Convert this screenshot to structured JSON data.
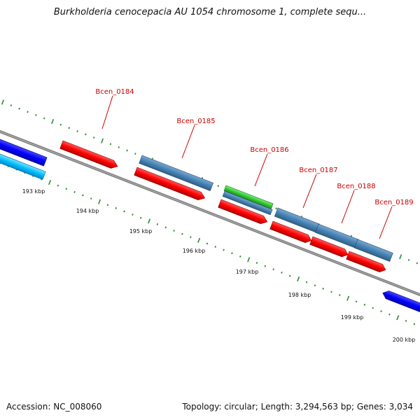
{
  "title": "Burkholderia cenocepacia AU 1054 chromosome 1, complete sequ...",
  "footer": {
    "accession": "Accession: NC_008060",
    "summary": "Topology: circular; Length: 3,294,563 bp; Genes: 3,034"
  },
  "colors": {
    "backbone": "#808080",
    "gene_red": "#ff0000",
    "gene_steelblue": "#4682b4",
    "gene_blue": "#0000ff",
    "gene_lightblue": "#00bfff",
    "gene_green": "#33cc33",
    "label_red": "#cc0000",
    "tick_green": "#2e8b2e"
  },
  "ticks": [
    "193 kbp",
    "194 kbp",
    "195 kbp",
    "196 kbp",
    "197 kbp",
    "198 kbp",
    "199 kbp",
    "200 kbp"
  ],
  "gene_labels": [
    "Bcen_0184",
    "Bcen_0185",
    "Bcen_0186",
    "Bcen_0187",
    "Bcen_0188",
    "Bcen_0189"
  ]
}
